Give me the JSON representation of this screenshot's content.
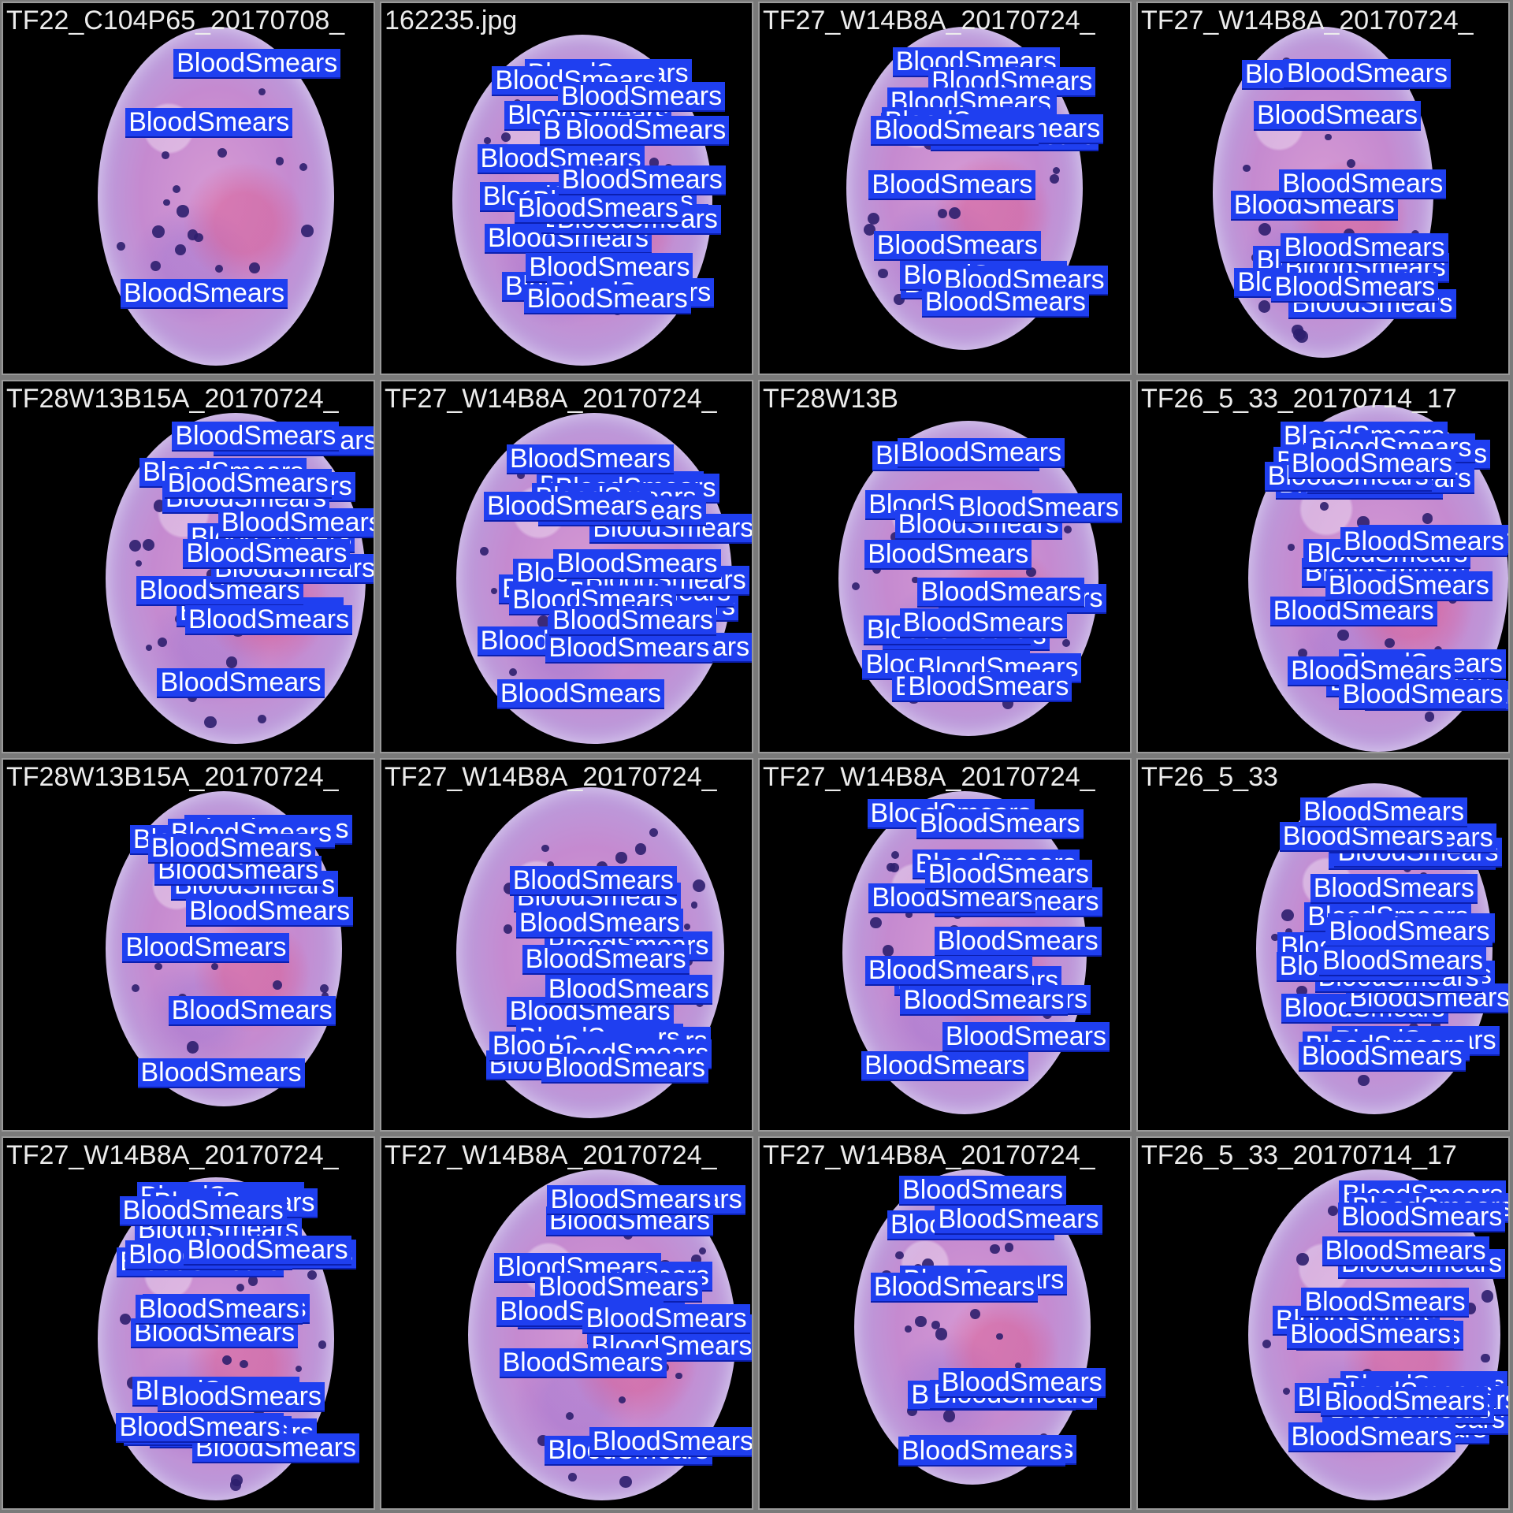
{
  "label_text": "BloodSmears",
  "colors": {
    "label_bg": "#1f3ff0",
    "label_text": "#ffffff",
    "tile_bg": "#000000",
    "grid_lines": "#9a9a9a",
    "filename_text": "#ececec"
  },
  "tiles": [
    {
      "filename": "TF22_C104P65_20170708_",
      "label_count": 3
    },
    {
      "filename": "162235.jpg",
      "label_count": 18
    },
    {
      "filename": "TF27_W14B8A_20170724_",
      "label_count": 16
    },
    {
      "filename": "TF27_W14B8A_20170724_",
      "label_count": 11
    },
    {
      "filename": "TF28W13B15A_20170724_",
      "label_count": 14
    },
    {
      "filename": "TF27_W14B8A_20170724_",
      "label_count": 20
    },
    {
      "filename": "TF28W13B",
      "label_count": 15
    },
    {
      "filename": "TF26_5_33_20170714_17",
      "label_count": 20
    },
    {
      "filename": "TF28W13B15A_20170724_",
      "label_count": 10
    },
    {
      "filename": "TF27_W14B8A_20170724_",
      "label_count": 13
    },
    {
      "filename": "TF27_W14B8A_20170724_",
      "label_count": 13
    },
    {
      "filename": "TF26_5_33",
      "label_count": 20
    },
    {
      "filename": "TF27_W14B8A_20170724_",
      "label_count": 17
    },
    {
      "filename": "TF27_W14B8A_20170724_",
      "label_count": 14
    },
    {
      "filename": "TF27_W14B8A_20170724_",
      "label_count": 10
    },
    {
      "filename": "TF26_5_33_20170714_17",
      "label_count": 18
    }
  ]
}
